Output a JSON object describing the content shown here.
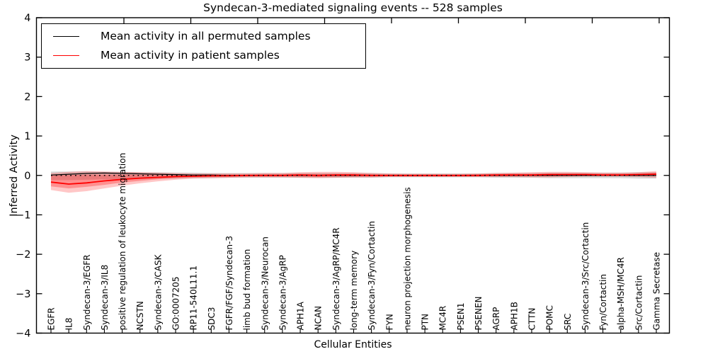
{
  "figure": {
    "title": "Syndecan-3-mediated signaling events -- 528 samples",
    "xlabel": "Cellular Entities",
    "ylabel": "Inferred Activity"
  },
  "legend": {
    "items": [
      {
        "label": "Mean activity in all permuted samples",
        "color": "#000000"
      },
      {
        "label": "Mean activity in patient samples",
        "color": "#ff0000"
      }
    ]
  },
  "chart_data": {
    "type": "line",
    "title": "Syndecan-3-mediated signaling events -- 528 samples",
    "xlabel": "Cellular Entities",
    "ylabel": "Inferred Activity",
    "ylim": [
      -4,
      4
    ],
    "ytick_labels": [
      "4",
      "3",
      "2",
      "1",
      "0",
      "−1",
      "−2",
      "−3",
      "−4"
    ],
    "ytick_values": [
      4,
      3,
      2,
      1,
      0,
      -1,
      -2,
      -3,
      -4
    ],
    "grid": false,
    "legend_position": "upper left",
    "zero_line": true,
    "colors": {
      "permuted": "#000000",
      "patient": "#ff0000",
      "patient_band": "rgba(255,0,0,0.25)",
      "permuted_band": "rgba(128,128,128,0.30)"
    },
    "categories": [
      "EGFR",
      "IL8",
      "Syndecan-3/EGFR",
      "Syndecan-3/IL8",
      "positive regulation of leukocyte migration",
      "NCSTN",
      "Syndecan-3/CASK",
      "GO:0007205",
      "RP11-540L11.1",
      "SDC3",
      "FGFR/FGF/Syndecan-3",
      "limb bud formation",
      "Syndecan-3/Neurocan",
      "Syndecan-3/AgRP",
      "APH1A",
      "NCAN",
      "Syndecan-3/AgRP/MC4R",
      "long-term memory",
      "Syndecan-3/Fyn/Cortactin",
      "FYN",
      "neuron projection morphogenesis",
      "PTN",
      "MC4R",
      "PSEN1",
      "PSENEN",
      "AGRP",
      "APH1B",
      "CTTN",
      "POMC",
      "SRC",
      "Syndecan-3/Src/Cortactin",
      "Fyn/Cortactin",
      "alpha-MSH/MC4R",
      "Src/Cortactin",
      "Gamma Secretase"
    ],
    "series": [
      {
        "name": "Mean activity in all permuted samples",
        "color": "#000000",
        "values": [
          0.01,
          0.03,
          0.05,
          0.06,
          0.05,
          0.04,
          0.03,
          0.02,
          0.01,
          0.01,
          0,
          0,
          0,
          0,
          0,
          0,
          0,
          0,
          0,
          0,
          0,
          0,
          0,
          0,
          0,
          0,
          0,
          0,
          0,
          0,
          0,
          0,
          0,
          0,
          0
        ],
        "band_hi": [
          0.1,
          0.1,
          0.1,
          0.09,
          0.09,
          0.08,
          0.08,
          0.07,
          0.07,
          0.06,
          0.06,
          0.06,
          0.06,
          0.06,
          0.06,
          0.06,
          0.06,
          0.06,
          0.06,
          0.05,
          0.05,
          0.05,
          0.05,
          0.05,
          0.05,
          0.06,
          0.06,
          0.06,
          0.07,
          0.07,
          0.07,
          0.07,
          0.07,
          0.08,
          0.08
        ],
        "band_lo": [
          -0.12,
          -0.12,
          -0.11,
          -0.1,
          -0.1,
          -0.09,
          -0.08,
          -0.08,
          -0.07,
          -0.07,
          -0.06,
          -0.06,
          -0.06,
          -0.06,
          -0.06,
          -0.06,
          -0.06,
          -0.06,
          -0.06,
          -0.05,
          -0.05,
          -0.05,
          -0.05,
          -0.05,
          -0.05,
          -0.06,
          -0.06,
          -0.06,
          -0.07,
          -0.07,
          -0.07,
          -0.07,
          -0.07,
          -0.08,
          -0.08
        ]
      },
      {
        "name": "Mean activity in patient samples",
        "color": "#ff0000",
        "values": [
          -0.17,
          -0.22,
          -0.19,
          -0.14,
          -0.1,
          -0.07,
          -0.05,
          -0.03,
          -0.02,
          -0.01,
          -0.01,
          0,
          0,
          0,
          0.01,
          0,
          0.01,
          0.01,
          0,
          0,
          0,
          0,
          0,
          0,
          0,
          0.01,
          0.01,
          0.01,
          0.02,
          0.02,
          0.02,
          0.01,
          0.01,
          0.02,
          0.03
        ],
        "band_hi": [
          0.06,
          0.09,
          0.11,
          0.1,
          0.09,
          0.08,
          0.07,
          0.06,
          0.05,
          0.05,
          0.05,
          0.05,
          0.06,
          0.06,
          0.08,
          0.09,
          0.09,
          0.08,
          0.06,
          0.05,
          0.04,
          0.04,
          0.04,
          0.04,
          0.05,
          0.06,
          0.07,
          0.08,
          0.09,
          0.09,
          0.08,
          0.07,
          0.07,
          0.08,
          0.11
        ],
        "band_lo": [
          -0.37,
          -0.44,
          -0.4,
          -0.33,
          -0.26,
          -0.2,
          -0.15,
          -0.11,
          -0.08,
          -0.07,
          -0.06,
          -0.05,
          -0.05,
          -0.05,
          -0.06,
          -0.07,
          -0.06,
          -0.05,
          -0.05,
          -0.04,
          -0.04,
          -0.04,
          -0.04,
          -0.04,
          -0.04,
          -0.04,
          -0.04,
          -0.05,
          -0.05,
          -0.04,
          -0.03,
          -0.03,
          -0.03,
          -0.04,
          -0.06
        ],
        "inner_band_hi": [
          0.0,
          0.01,
          0.02,
          0.02,
          0.02,
          0.02,
          0.02,
          0.02,
          0.02,
          0.02,
          0.02,
          0.02,
          0.03,
          0.03,
          0.04,
          0.04,
          0.04,
          0.04,
          0.03,
          0.02,
          0.02,
          0.02,
          0.02,
          0.02,
          0.03,
          0.03,
          0.04,
          0.04,
          0.05,
          0.05,
          0.05,
          0.04,
          0.04,
          0.05,
          0.07
        ],
        "inner_band_lo": [
          -0.28,
          -0.33,
          -0.29,
          -0.24,
          -0.18,
          -0.14,
          -0.1,
          -0.07,
          -0.05,
          -0.04,
          -0.03,
          -0.03,
          -0.03,
          -0.03,
          -0.03,
          -0.04,
          -0.03,
          -0.03,
          -0.03,
          -0.02,
          -0.02,
          -0.02,
          -0.02,
          -0.02,
          -0.02,
          -0.02,
          -0.02,
          -0.02,
          -0.02,
          -0.01,
          -0.01,
          -0.01,
          -0.01,
          0.0,
          0.01
        ]
      }
    ]
  }
}
